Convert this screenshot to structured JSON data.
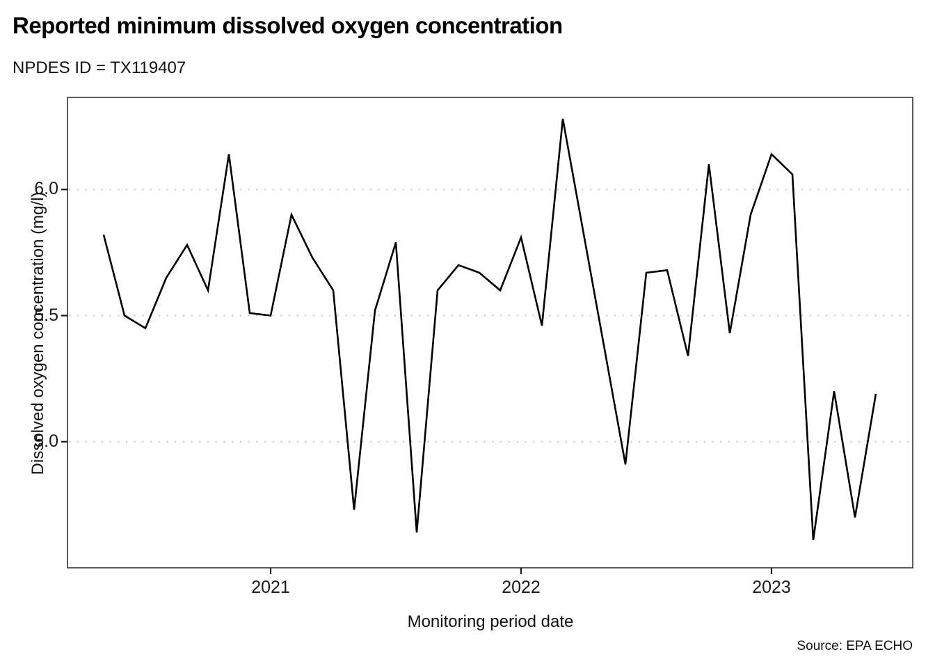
{
  "header": {
    "title": "Reported minimum dissolved oxygen concentration",
    "subtitle": "NPDES ID = TX119407"
  },
  "footer": {
    "source": "Source: EPA ECHO"
  },
  "chart_data": {
    "type": "line",
    "title": "Reported minimum dissolved oxygen concentration",
    "subtitle": "NPDES ID = TX119407",
    "xlabel": "Monitoring period date",
    "ylabel": "Dissolved oxygen concentration (mg/l)",
    "legend": "none",
    "grid": "dotted horizontal gridlines at y ticks",
    "line_color": "#000000",
    "gridline_color": "#cccccc",
    "border_color": "#333333",
    "ylim": [
      4.5,
      6.365
    ],
    "y_ticks": [
      {
        "label": "5.0",
        "value": 5.0
      },
      {
        "label": "5.5",
        "value": 5.5
      },
      {
        "label": "6.0",
        "value": 6.0
      }
    ],
    "x_ticks": [
      {
        "label": "2021",
        "date": "2021-01"
      },
      {
        "label": "2022",
        "date": "2022-01"
      },
      {
        "label": "2023",
        "date": "2023-01"
      }
    ],
    "points": [
      {
        "date": "2020-05",
        "value": 5.82
      },
      {
        "date": "2020-06",
        "value": 5.5
      },
      {
        "date": "2020-07",
        "value": 5.45
      },
      {
        "date": "2020-08",
        "value": 5.65
      },
      {
        "date": "2020-09",
        "value": 5.78
      },
      {
        "date": "2020-10",
        "value": 5.6
      },
      {
        "date": "2020-11",
        "value": 6.14
      },
      {
        "date": "2020-12",
        "value": 5.51
      },
      {
        "date": "2021-01",
        "value": 5.5
      },
      {
        "date": "2021-02",
        "value": 5.9
      },
      {
        "date": "2021-03",
        "value": 5.73
      },
      {
        "date": "2021-04",
        "value": 5.6
      },
      {
        "date": "2021-05",
        "value": 4.73
      },
      {
        "date": "2021-06",
        "value": 5.52
      },
      {
        "date": "2021-07",
        "value": 5.79
      },
      {
        "date": "2021-08",
        "value": 4.64
      },
      {
        "date": "2021-09",
        "value": 5.6
      },
      {
        "date": "2021-10",
        "value": 5.7
      },
      {
        "date": "2021-11",
        "value": 5.67
      },
      {
        "date": "2021-12",
        "value": 5.6
      },
      {
        "date": "2022-01",
        "value": 5.81
      },
      {
        "date": "2022-02",
        "value": 5.46
      },
      {
        "date": "2022-03",
        "value": 6.28
      },
      {
        "date": "2022-06",
        "value": 4.91
      },
      {
        "date": "2022-07",
        "value": 5.67
      },
      {
        "date": "2022-08",
        "value": 5.68
      },
      {
        "date": "2022-09",
        "value": 5.34
      },
      {
        "date": "2022-10",
        "value": 6.1
      },
      {
        "date": "2022-11",
        "value": 5.43
      },
      {
        "date": "2022-12",
        "value": 5.9
      },
      {
        "date": "2023-01",
        "value": 6.14
      },
      {
        "date": "2023-02",
        "value": 6.06
      },
      {
        "date": "2023-03",
        "value": 4.61
      },
      {
        "date": "2023-04",
        "value": 5.2
      },
      {
        "date": "2023-05",
        "value": 4.7
      },
      {
        "date": "2023-06",
        "value": 5.19
      }
    ]
  }
}
